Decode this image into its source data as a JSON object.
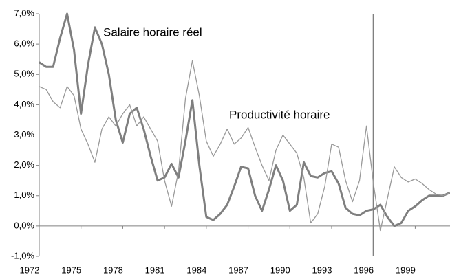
{
  "chart_data": {
    "type": "line",
    "annotations": [
      "Salaire horaire réel",
      "Productivité horaire"
    ],
    "x": [
      1972,
      1972.5,
      1973,
      1973.5,
      1974,
      1974.5,
      1975,
      1975.5,
      1976,
      1976.5,
      1977,
      1977.5,
      1978,
      1978.5,
      1979,
      1979.5,
      1980,
      1980.5,
      1981,
      1981.5,
      1982,
      1982.5,
      1983,
      1983.5,
      1984,
      1984.5,
      1985,
      1985.5,
      1986,
      1986.5,
      1987,
      1987.5,
      1988,
      1988.5,
      1989,
      1989.5,
      1990,
      1990.5,
      1991,
      1991.5,
      1992,
      1992.5,
      1993,
      1993.5,
      1994,
      1994.5,
      1995,
      1995.5,
      1996,
      1996.5,
      1997,
      1997.5,
      1998,
      1998.5,
      1999,
      1999.5,
      2000,
      2000.5,
      2001,
      2001.5
    ],
    "series": [
      {
        "name": "Salaire horaire réel",
        "color": "#7f7f7f",
        "width": 3,
        "values": [
          5.4,
          5.25,
          5.25,
          6.2,
          7.0,
          5.8,
          3.7,
          5.3,
          6.55,
          6.0,
          5.0,
          3.5,
          2.75,
          3.7,
          3.9,
          3.2,
          2.3,
          1.5,
          1.6,
          2.05,
          1.6,
          2.8,
          4.15,
          2.0,
          0.3,
          0.2,
          0.4,
          0.7,
          1.3,
          1.95,
          1.9,
          1.0,
          0.5,
          1.2,
          2.0,
          1.5,
          0.5,
          0.7,
          2.1,
          1.65,
          1.6,
          1.75,
          1.8,
          1.4,
          0.6,
          0.4,
          0.35,
          0.5,
          0.55,
          0.7,
          0.3,
          0.0,
          0.1,
          0.5,
          0.65,
          0.85,
          1.0,
          1.0,
          1.0,
          1.1
        ]
      },
      {
        "name": "Productivité horaire",
        "color": "#999999",
        "width": 1.3,
        "values": [
          4.6,
          4.5,
          4.1,
          3.9,
          4.6,
          4.3,
          3.2,
          2.7,
          2.1,
          3.2,
          3.6,
          3.3,
          3.7,
          4.0,
          3.3,
          3.6,
          3.2,
          2.8,
          1.5,
          0.65,
          1.8,
          4.2,
          5.45,
          4.3,
          2.8,
          2.3,
          2.7,
          3.2,
          2.7,
          2.9,
          3.25,
          2.6,
          2.0,
          1.5,
          2.5,
          3.0,
          2.7,
          2.4,
          1.6,
          0.1,
          0.4,
          1.3,
          2.7,
          2.6,
          1.5,
          0.8,
          1.5,
          3.3,
          1.4,
          -0.15,
          0.9,
          1.95,
          1.6,
          1.45,
          1.55,
          1.4,
          1.2,
          1.05,
          1.0,
          1.1
        ]
      }
    ],
    "vline": 1996,
    "xlim": [
      1972,
      2001.5
    ],
    "xticks": [
      1972,
      1975,
      1978,
      1981,
      1984,
      1987,
      1990,
      1993,
      1996,
      1999
    ],
    "ylim": [
      -1,
      7
    ],
    "yticks": [
      {
        "value": -1,
        "label": "-1,0%"
      },
      {
        "value": 0,
        "label": "0,0%"
      },
      {
        "value": 1,
        "label": "1,0%"
      },
      {
        "value": 2,
        "label": "2,0%"
      },
      {
        "value": 3,
        "label": "3,0%"
      },
      {
        "value": 4,
        "label": "4,0%"
      },
      {
        "value": 5,
        "label": "5,0%"
      },
      {
        "value": 6,
        "label": "6,0%"
      },
      {
        "value": 7,
        "label": "7,0%"
      }
    ],
    "grid": false
  }
}
